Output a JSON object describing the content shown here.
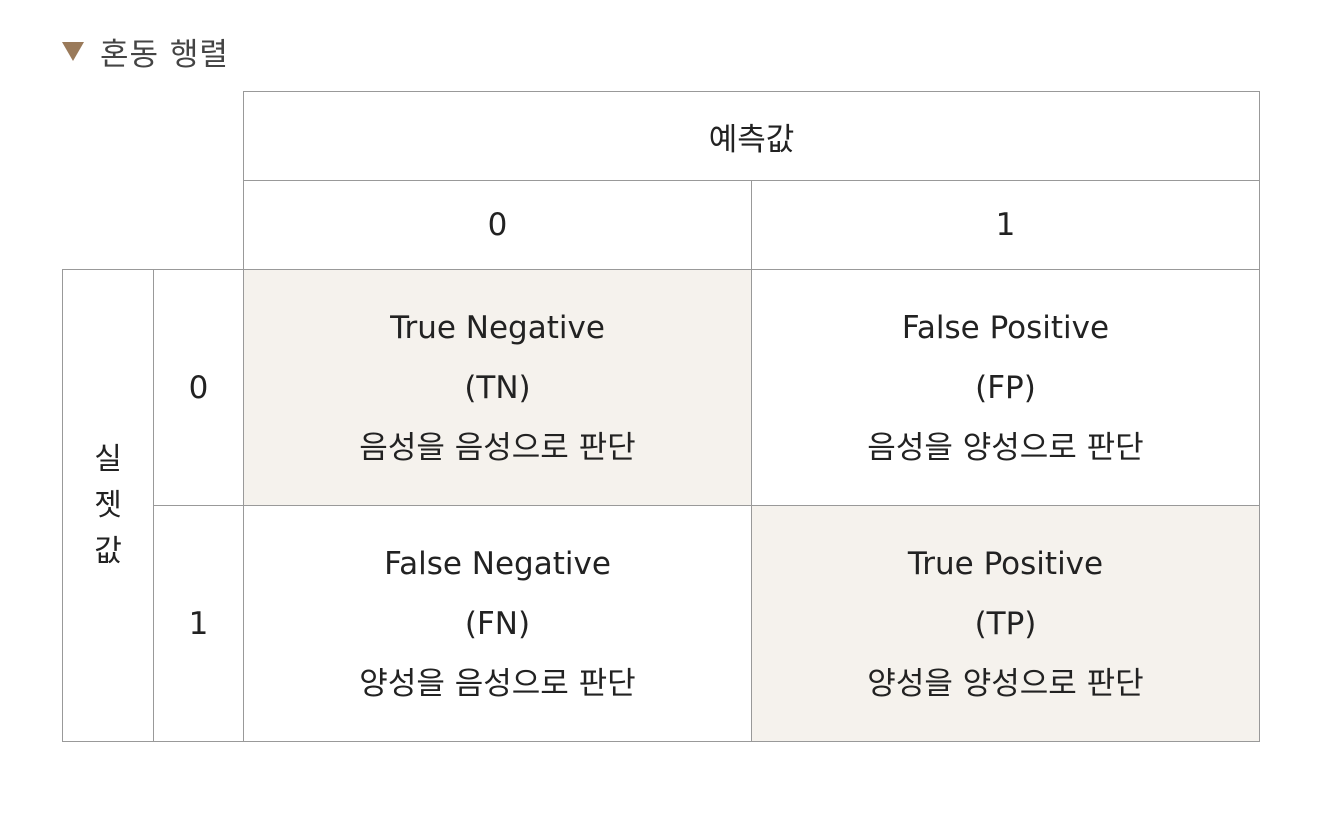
{
  "title": "혼동 행렬",
  "predicted_header": "예측값",
  "actual_header_chars": [
    "실",
    "젯",
    "값"
  ],
  "predicted_labels": [
    "0",
    "1"
  ],
  "actual_labels": [
    "0",
    "1"
  ],
  "colors": {
    "triangle": "#9a7a5a",
    "shaded_cell": "#f5f2ed",
    "border": "#999999"
  },
  "cells": [
    {
      "row": 0,
      "col": 0,
      "name": "True Negative",
      "abbr": "(TN)",
      "desc": "음성을 음성으로 판단",
      "shaded": true
    },
    {
      "row": 0,
      "col": 1,
      "name": "False Positive",
      "abbr": "(FP)",
      "desc": "음성을 양성으로 판단",
      "shaded": false
    },
    {
      "row": 1,
      "col": 0,
      "name": "False Negative",
      "abbr": "(FN)",
      "desc": "양성을 음성으로 판단",
      "shaded": false
    },
    {
      "row": 1,
      "col": 1,
      "name": "True Positive",
      "abbr": "(TP)",
      "desc": "양성을 양성으로 판단",
      "shaded": true
    }
  ]
}
